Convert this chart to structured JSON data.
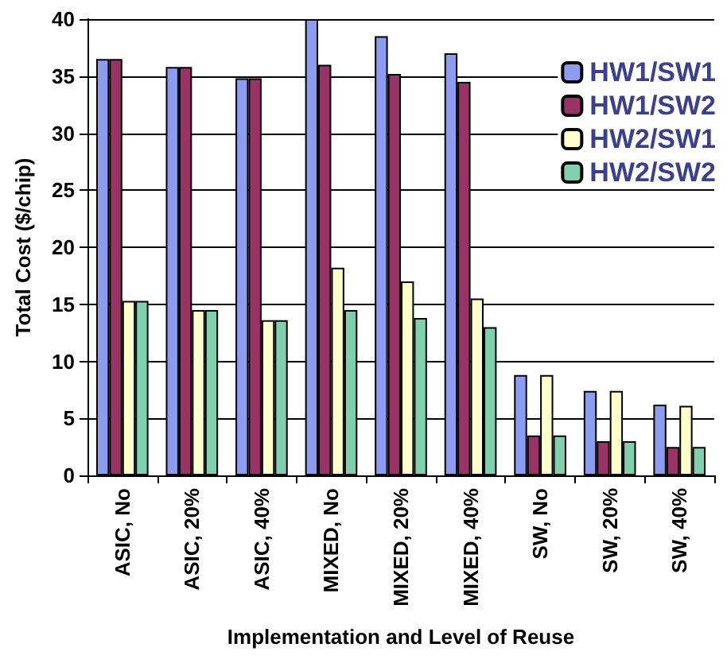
{
  "chart_data": {
    "type": "bar",
    "xlabel": "Implementation and Level of Reuse",
    "ylabel": "Total Cost ($/chip)",
    "categories": [
      "ASIC, No",
      "ASIC, 20%",
      "ASIC, 40%",
      "MIXED, No",
      "MIXED, 20%",
      "MIXED, 40%",
      "SW, No",
      "SW, 20%",
      "SW, 40%"
    ],
    "series": [
      {
        "name": "HW1/SW1",
        "color": "#8c9cf0",
        "values": [
          36.5,
          35.8,
          34.8,
          40,
          38.5,
          37,
          8.8,
          7.4,
          6.2
        ]
      },
      {
        "name": "HW1/SW2",
        "color": "#993366",
        "values": [
          36.5,
          35.8,
          34.8,
          36,
          35.2,
          34.5,
          3.5,
          3,
          2.5
        ]
      },
      {
        "name": "HW2/SW1",
        "color": "#ffffcc",
        "values": [
          15.3,
          14.5,
          13.6,
          18.2,
          17,
          15.5,
          8.8,
          7.4,
          6.1
        ]
      },
      {
        "name": "HW2/SW2",
        "color": "#80d0b0",
        "values": [
          15.3,
          14.5,
          13.6,
          14.5,
          13.8,
          13,
          3.5,
          3,
          2.5
        ]
      }
    ],
    "ylim": [
      0,
      40
    ],
    "yticks": [
      0,
      5,
      10,
      15,
      20,
      25,
      30,
      35,
      40
    ],
    "grid": "y",
    "legend": "top right"
  }
}
